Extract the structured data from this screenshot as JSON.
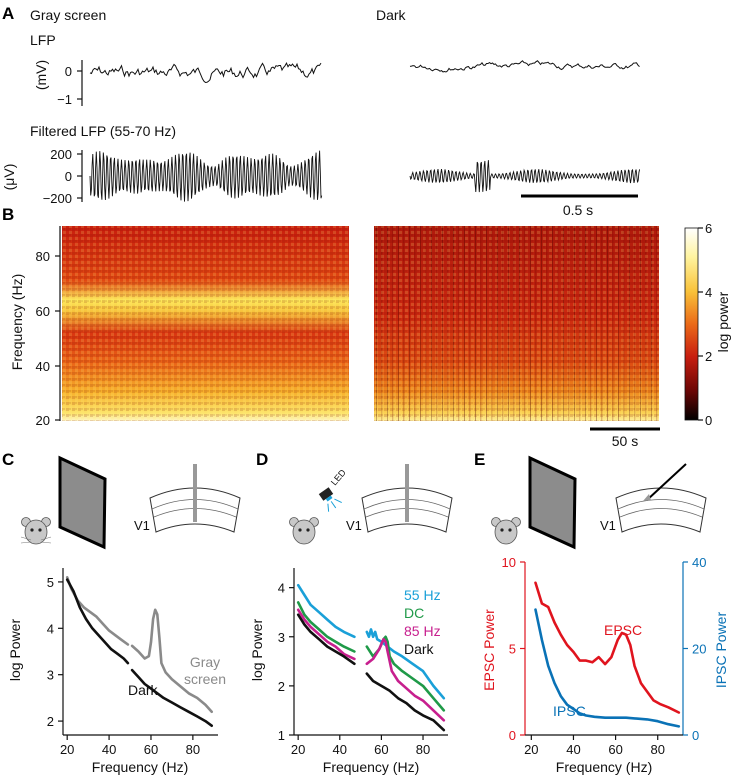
{
  "panels": {
    "A": "A",
    "B": "B",
    "C": "C",
    "D": "D",
    "E": "E"
  },
  "panelA": {
    "cond_left": "Gray screen",
    "cond_right": "Dark",
    "lfp_title": "LFP",
    "lfp_unit": "(mV)",
    "lfp_ticks": [
      "0",
      "−1"
    ],
    "filt_title": "Filtered LFP (55-70 Hz)",
    "filt_unit": "(μV)",
    "filt_ticks": [
      "200",
      "0",
      "−200"
    ],
    "scale_label": "0.5 s"
  },
  "panelB": {
    "ylabel": "Frequency (Hz)",
    "yticks": [
      "80",
      "60",
      "40",
      "20"
    ],
    "cbar_label": "log power",
    "cbar_ticks": [
      "6",
      "4",
      "2",
      "0"
    ],
    "scale_label": "50 s"
  },
  "schematic": {
    "v1": "V1",
    "led": "LED"
  },
  "chart_data": [
    {
      "panel": "C",
      "type": "line",
      "xlabel": "Frequency (Hz)",
      "ylabel": "log Power",
      "xlim": [
        18,
        92
      ],
      "ylim": [
        1.7,
        5.3
      ],
      "xticks": [
        "20",
        "40",
        "60",
        "80"
      ],
      "yticks": [
        "5",
        "4",
        "3",
        "2"
      ],
      "series": [
        {
          "name": "Gray screen",
          "label_lines": [
            "Gray",
            "screen"
          ],
          "color": "#8a8a8a",
          "segments": [
            {
              "x": [
                20,
                22,
                25,
                28,
                31,
                34,
                37,
                40,
                43,
                46,
                49
              ],
              "y": [
                5.1,
                4.85,
                4.6,
                4.45,
                4.35,
                4.25,
                4.1,
                3.95,
                3.85,
                3.75,
                3.65
              ]
            },
            {
              "x": [
                51,
                54,
                57,
                59,
                60,
                61,
                62,
                63,
                64,
                65,
                67,
                70,
                74,
                78,
                82,
                86,
                89
              ],
              "y": [
                3.62,
                3.5,
                3.35,
                3.4,
                3.7,
                4.2,
                4.4,
                4.3,
                3.8,
                3.25,
                3.05,
                2.9,
                2.75,
                2.6,
                2.5,
                2.35,
                2.2
              ]
            }
          ]
        },
        {
          "name": "Dark",
          "label_lines": [
            "Dark"
          ],
          "color": "#111111",
          "segments": [
            {
              "x": [
                20,
                23,
                26,
                29,
                32,
                35,
                38,
                41,
                44,
                47,
                49
              ],
              "y": [
                5.05,
                4.8,
                4.45,
                4.2,
                4.0,
                3.85,
                3.7,
                3.55,
                3.45,
                3.35,
                3.25
              ]
            },
            {
              "x": [
                51,
                54,
                57,
                60,
                63,
                66,
                70,
                74,
                78,
                82,
                86,
                89
              ],
              "y": [
                3.1,
                2.95,
                2.8,
                2.7,
                2.6,
                2.5,
                2.4,
                2.3,
                2.2,
                2.1,
                2.0,
                1.9
              ]
            }
          ]
        }
      ]
    },
    {
      "panel": "D",
      "type": "line",
      "xlabel": "Frequency (Hz)",
      "ylabel": "log Power",
      "xlim": [
        18,
        92
      ],
      "ylim": [
        1.0,
        4.4
      ],
      "xticks": [
        "20",
        "40",
        "60",
        "80"
      ],
      "yticks": [
        "4",
        "3",
        "2",
        "1"
      ],
      "series": [
        {
          "name": "55 Hz",
          "color": "#1aa0d8",
          "segments": [
            {
              "x": [
                20,
                23,
                26,
                30,
                34,
                38,
                42,
                47
              ],
              "y": [
                4.05,
                3.85,
                3.65,
                3.5,
                3.35,
                3.2,
                3.1,
                3.0
              ]
            },
            {
              "x": [
                53,
                54,
                55,
                56,
                57,
                58,
                60,
                63,
                66,
                70,
                75,
                80,
                85,
                90
              ],
              "y": [
                3.1,
                3.0,
                3.15,
                3.0,
                3.1,
                2.95,
                2.9,
                2.8,
                2.7,
                2.6,
                2.45,
                2.3,
                2.0,
                1.75
              ]
            }
          ]
        },
        {
          "name": "DC",
          "color": "#1f9a48",
          "segments": [
            {
              "x": [
                20,
                23,
                26,
                30,
                34,
                38,
                42,
                47
              ],
              "y": [
                3.7,
                3.45,
                3.3,
                3.15,
                3.0,
                2.9,
                2.8,
                2.7
              ]
            },
            {
              "x": [
                53,
                56,
                59,
                61,
                62,
                63,
                64,
                66,
                70,
                75,
                80,
                85,
                90
              ],
              "y": [
                2.8,
                2.6,
                2.75,
                2.95,
                3.0,
                2.9,
                2.6,
                2.45,
                2.3,
                2.15,
                2.0,
                1.75,
                1.5
              ]
            }
          ]
        },
        {
          "name": "85 Hz",
          "color": "#c71f8e",
          "segments": [
            {
              "x": [
                20,
                23,
                26,
                30,
                34,
                38,
                42,
                47
              ],
              "y": [
                3.55,
                3.35,
                3.2,
                3.05,
                2.9,
                2.8,
                2.65,
                2.55
              ]
            },
            {
              "x": [
                53,
                56,
                59,
                61,
                62,
                63,
                65,
                68,
                72,
                76,
                80,
                85,
                90
              ],
              "y": [
                2.45,
                2.55,
                2.75,
                2.95,
                2.9,
                2.7,
                2.3,
                2.1,
                1.95,
                1.8,
                1.7,
                1.5,
                1.3
              ]
            }
          ]
        },
        {
          "name": "Dark",
          "color": "#111111",
          "segments": [
            {
              "x": [
                20,
                23,
                26,
                30,
                34,
                38,
                42,
                47
              ],
              "y": [
                3.45,
                3.25,
                3.1,
                2.95,
                2.8,
                2.7,
                2.6,
                2.45
              ]
            },
            {
              "x": [
                53,
                56,
                60,
                64,
                68,
                72,
                76,
                80,
                85,
                90
              ],
              "y": [
                2.25,
                2.1,
                2.0,
                1.9,
                1.75,
                1.65,
                1.5,
                1.4,
                1.3,
                1.1
              ]
            }
          ]
        }
      ]
    },
    {
      "panel": "E",
      "type": "line",
      "xlabel": "Frequency (Hz)",
      "ylabel": "EPSC Power",
      "ylabel_right": "IPSC Power",
      "xlim": [
        17,
        92
      ],
      "ylim": [
        0,
        10
      ],
      "ylim_right": [
        0,
        40
      ],
      "xticks": [
        "20",
        "40",
        "60",
        "80"
      ],
      "yticks": [
        "10",
        "5",
        "0"
      ],
      "yticks_right": [
        "40",
        "20",
        "0"
      ],
      "series": [
        {
          "name": "EPSC",
          "axis": "left",
          "color": "#e0141e",
          "x": [
            22,
            25,
            28,
            31,
            34,
            37,
            40,
            43,
            46,
            49,
            52,
            55,
            58,
            61,
            63,
            65,
            67,
            69,
            72,
            75,
            78,
            81,
            85,
            90
          ],
          "y": [
            8.8,
            7.6,
            7.4,
            6.5,
            5.8,
            5.2,
            4.8,
            4.3,
            4.3,
            4.2,
            4.5,
            4.1,
            4.5,
            5.5,
            5.9,
            5.8,
            5.2,
            4.0,
            3.0,
            2.5,
            2.0,
            1.8,
            1.6,
            1.3
          ]
        },
        {
          "name": "IPSC",
          "axis": "right",
          "color": "#0a72b6",
          "x": [
            22,
            25,
            28,
            31,
            34,
            37,
            40,
            43,
            46,
            50,
            55,
            60,
            65,
            70,
            75,
            80,
            85,
            90
          ],
          "y": [
            29,
            22,
            16,
            12,
            9,
            7,
            6,
            5,
            4.5,
            4.2,
            4.0,
            4.0,
            4.0,
            3.8,
            3.6,
            3.2,
            2.5,
            2.0
          ]
        }
      ]
    }
  ]
}
